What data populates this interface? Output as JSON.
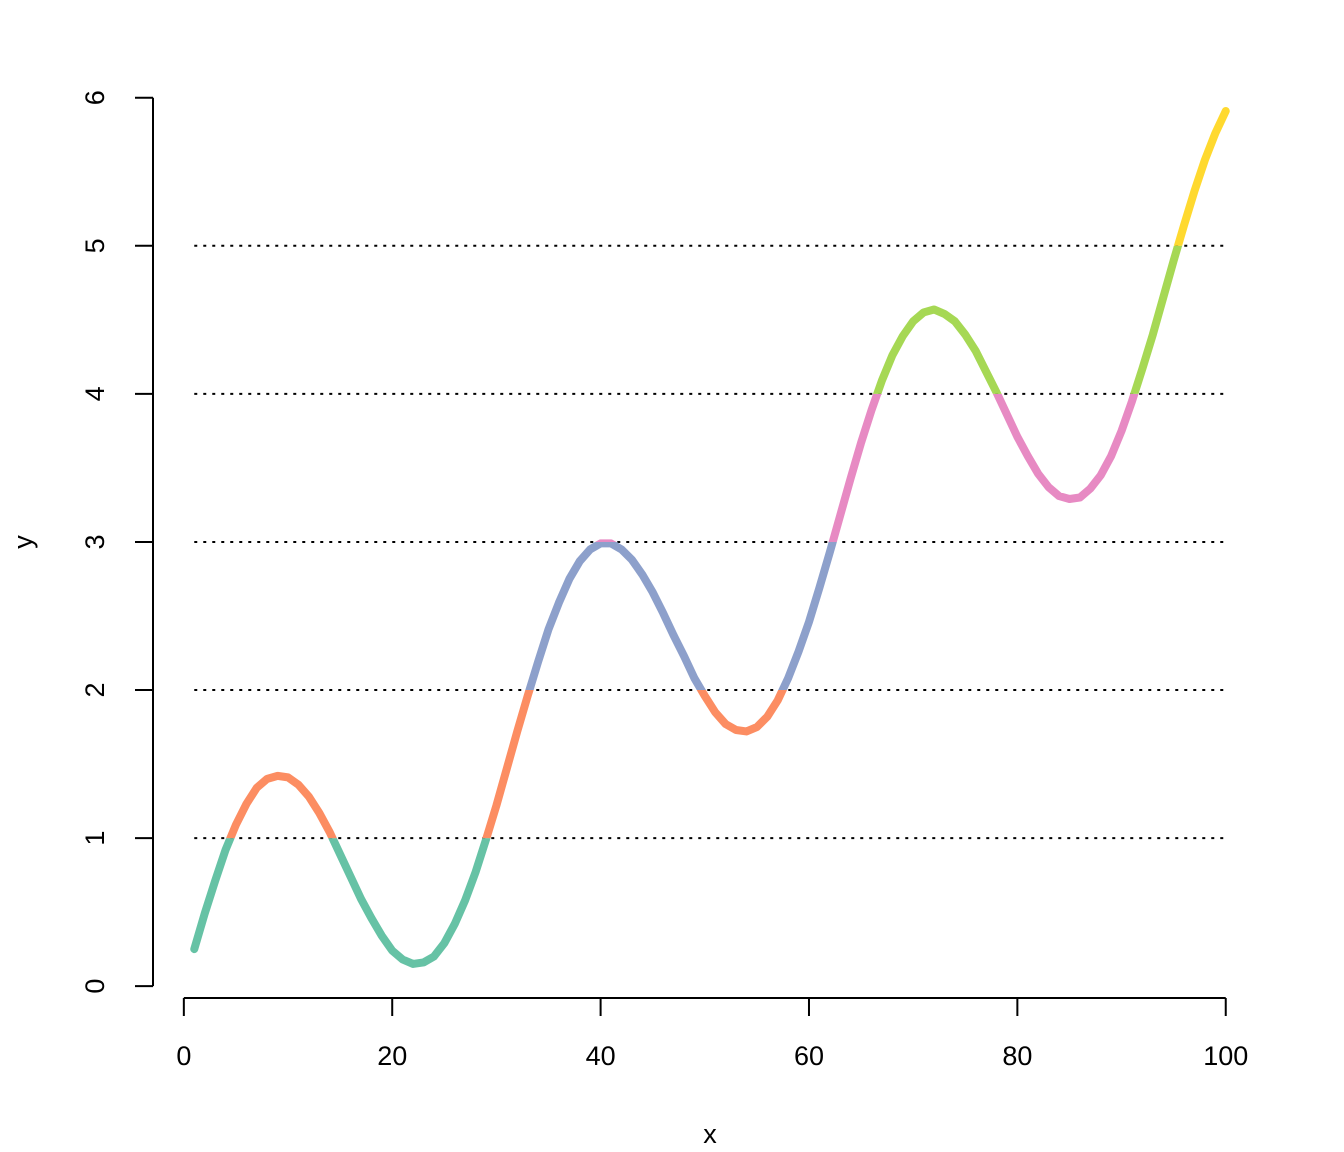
{
  "chart_data": {
    "type": "line",
    "xlabel": "x",
    "ylabel": "y",
    "x": [
      1,
      2,
      3,
      4,
      5,
      6,
      7,
      8,
      9,
      10,
      11,
      12,
      13,
      14,
      15,
      16,
      17,
      18,
      19,
      20,
      21,
      22,
      23,
      24,
      25,
      26,
      27,
      28,
      29,
      30,
      31,
      32,
      33,
      34,
      35,
      36,
      37,
      38,
      39,
      40,
      41,
      42,
      43,
      44,
      45,
      46,
      47,
      48,
      49,
      50,
      51,
      52,
      53,
      54,
      55,
      56,
      57,
      58,
      59,
      60,
      61,
      62,
      63,
      64,
      65,
      66,
      67,
      68,
      69,
      70,
      71,
      72,
      73,
      74,
      75,
      76,
      77,
      78,
      79,
      80,
      81,
      82,
      83,
      84,
      85,
      86,
      87,
      88,
      89,
      90,
      91,
      92,
      93,
      94,
      95,
      96,
      97,
      98,
      99,
      100
    ],
    "values": [
      0.25,
      0.49,
      0.71,
      0.92,
      1.09,
      1.23,
      1.34,
      1.4,
      1.42,
      1.41,
      1.36,
      1.28,
      1.17,
      1.04,
      0.89,
      0.74,
      0.59,
      0.46,
      0.34,
      0.24,
      0.18,
      0.15,
      0.16,
      0.2,
      0.29,
      0.42,
      0.58,
      0.77,
      0.99,
      1.22,
      1.47,
      1.72,
      1.96,
      2.19,
      2.41,
      2.59,
      2.75,
      2.87,
      2.95,
      2.99,
      2.99,
      2.95,
      2.88,
      2.78,
      2.66,
      2.52,
      2.37,
      2.23,
      2.08,
      1.96,
      1.85,
      1.77,
      1.73,
      1.72,
      1.75,
      1.82,
      1.93,
      2.08,
      2.26,
      2.46,
      2.69,
      2.93,
      3.18,
      3.43,
      3.67,
      3.89,
      4.09,
      4.26,
      4.39,
      4.49,
      4.55,
      4.57,
      4.54,
      4.49,
      4.4,
      4.29,
      4.15,
      4.01,
      3.86,
      3.71,
      3.58,
      3.46,
      3.37,
      3.31,
      3.29,
      3.3,
      3.36,
      3.45,
      3.58,
      3.75,
      3.95,
      4.17,
      4.4,
      4.65,
      4.9,
      5.14,
      5.37,
      5.58,
      5.76,
      5.91
    ],
    "colors": [
      "#66c2a5",
      "#fc8d62",
      "#8da0cb",
      "#e78ac3",
      "#a6d854",
      "#ffd92f"
    ],
    "hlines": [
      1,
      2,
      3,
      4,
      5
    ],
    "xlim": [
      -2.96,
      103.96
    ],
    "xticks": [
      0,
      20,
      40,
      60,
      80,
      100
    ],
    "ylim": [
      -0.08,
      6.14
    ],
    "yticks": [
      0,
      1,
      2,
      3,
      4,
      5,
      6
    ]
  }
}
